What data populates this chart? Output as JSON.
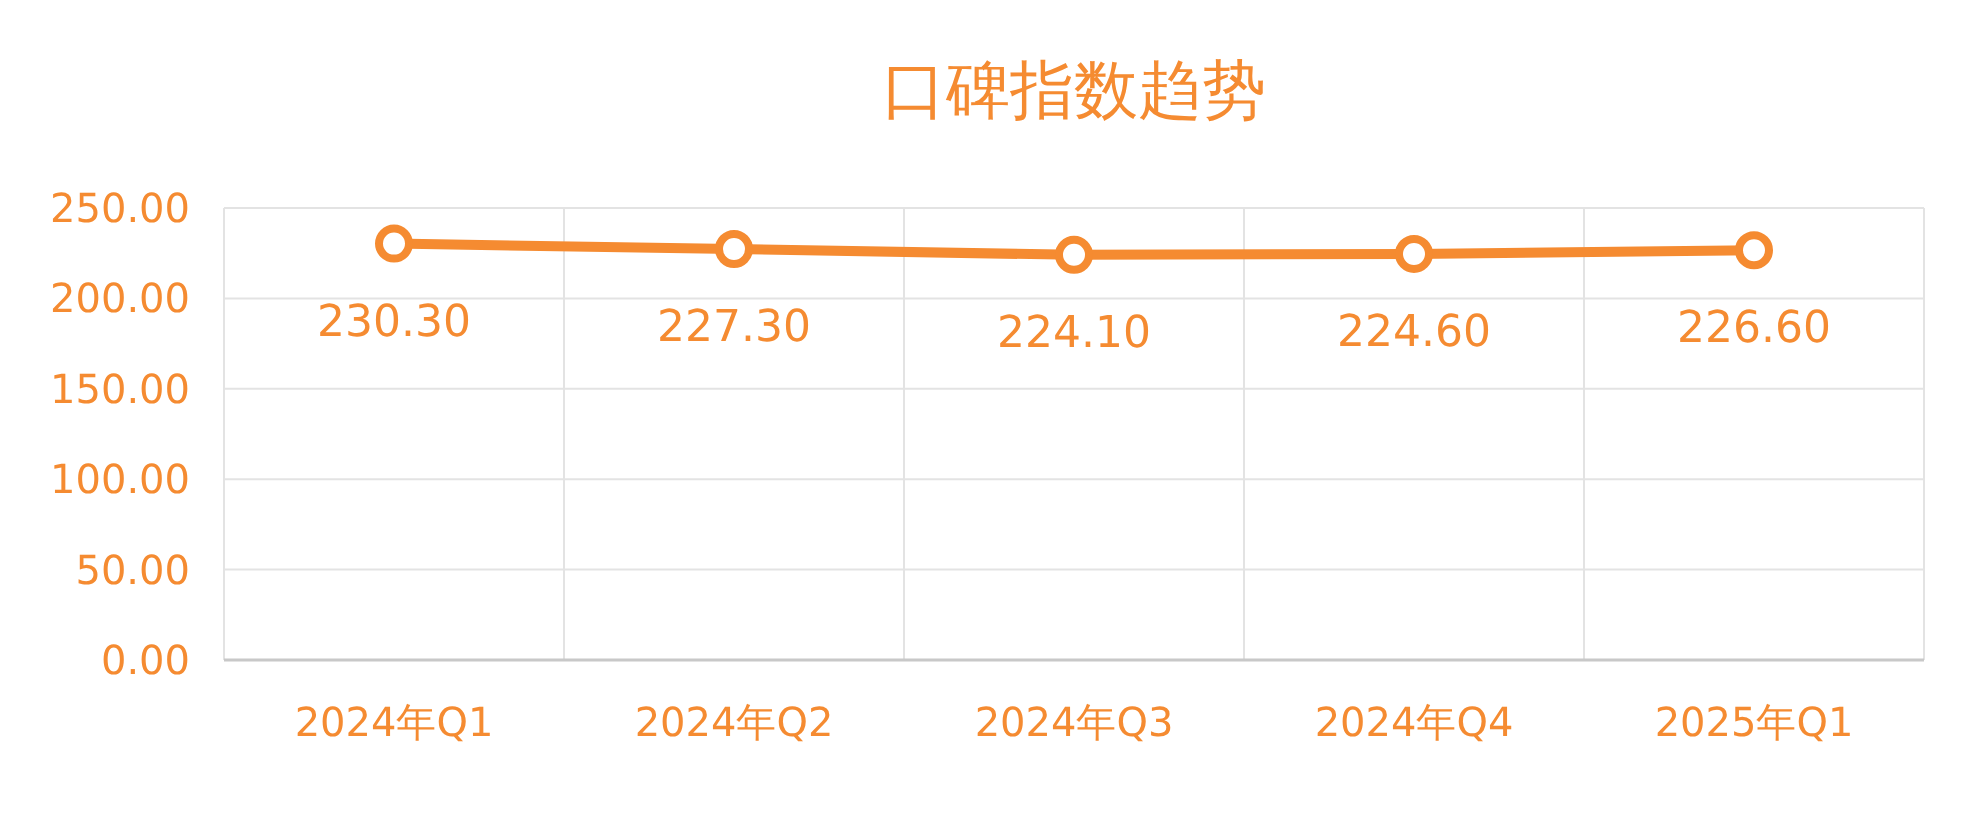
{
  "chart_data": {
    "type": "line",
    "title": "口碑指数趋势",
    "categories": [
      "2024年Q1",
      "2024年Q2",
      "2024年Q3",
      "2024年Q4",
      "2025年Q1"
    ],
    "values": [
      230.3,
      227.3,
      224.1,
      224.6,
      226.6
    ],
    "value_labels": [
      "230.30",
      "227.30",
      "224.10",
      "224.60",
      "226.60"
    ],
    "color": "#f58b31",
    "marker": "circle",
    "grid": true,
    "ylim": [
      0,
      250
    ],
    "yticks": [
      {
        "value": 0,
        "label": "0.00"
      },
      {
        "value": 50,
        "label": "50.00"
      },
      {
        "value": 100,
        "label": "100.00"
      },
      {
        "value": 150,
        "label": "150.00"
      },
      {
        "value": 200,
        "label": "200.00"
      },
      {
        "value": 250,
        "label": "250.00"
      }
    ]
  }
}
